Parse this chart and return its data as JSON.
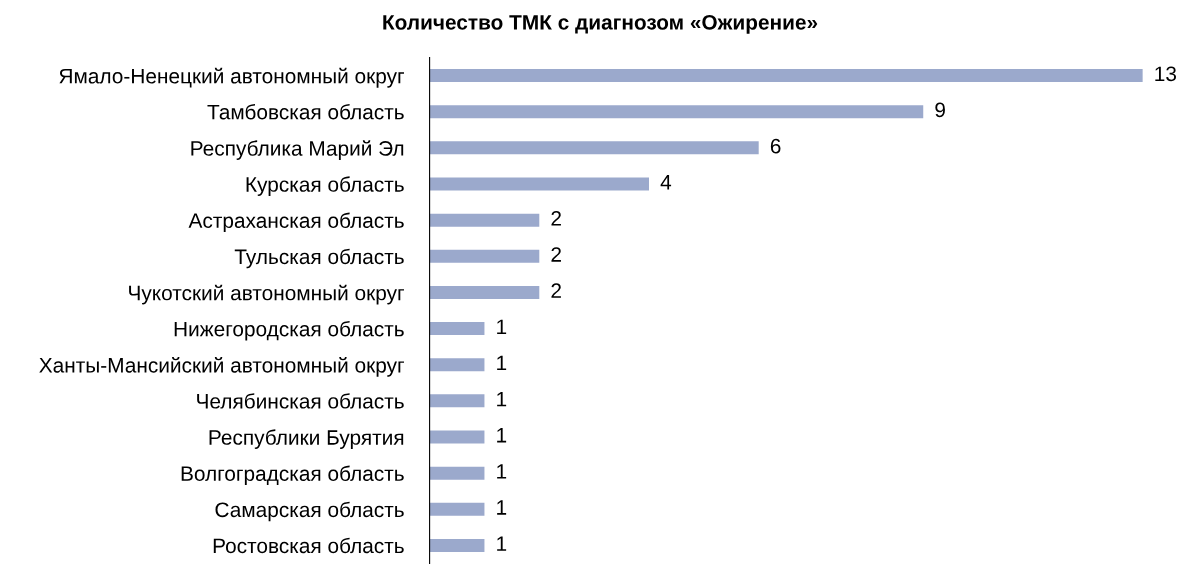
{
  "chart_data": {
    "type": "bar",
    "orientation": "horizontal",
    "title": "Количество ТМК с диагнозом «Ожирение»",
    "categories": [
      "Ямало-Ненецкий автономный округ",
      "Тамбовская область",
      "Республика Марий Эл",
      "Курская область",
      "Астраханская область",
      "Тульская область",
      "Чукотский автономный округ",
      "Нижегородская область",
      "Ханты-Мансийский автономный округ",
      "Челябинская область",
      "Республики Бурятия",
      "Волгоградская область",
      "Самарская область",
      "Ростовская область"
    ],
    "values": [
      13,
      9,
      6,
      4,
      2,
      2,
      2,
      1,
      1,
      1,
      1,
      1,
      1,
      1
    ],
    "color": "#9ba9cc",
    "data_labels": true,
    "grid": false,
    "legend": false
  }
}
